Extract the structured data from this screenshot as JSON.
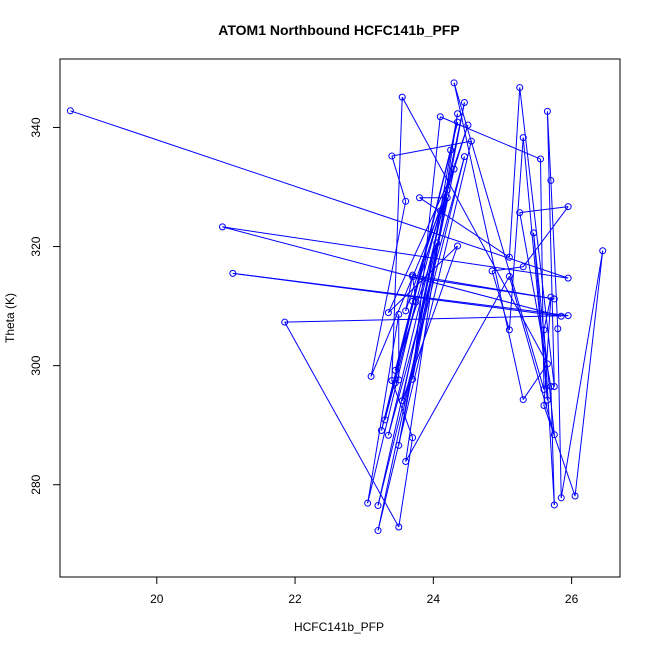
{
  "chart_data": {
    "type": "line",
    "title": "ATOM1 Northbound HCFC141b_PFP",
    "xlabel": "HCFC141b_PFP",
    "ylabel": "Theta (K)",
    "xlim": [
      18.6,
      26.7
    ],
    "ylim": [
      264.5,
      351.5
    ],
    "xticks": [
      20,
      22,
      24,
      26
    ],
    "yticks": [
      280,
      300,
      320,
      340
    ],
    "xtick_labels": [
      "20",
      "22",
      "24",
      "26"
    ],
    "ytick_labels": [
      "280",
      "300",
      "320",
      "340"
    ],
    "series_color": "#0000ff",
    "marker": "open-circle",
    "points": [
      [
        18.75,
        342.8
      ],
      [
        25.95,
        314.7
      ],
      [
        20.95,
        323.3
      ],
      [
        25.85,
        308.3
      ],
      [
        21.1,
        315.5
      ],
      [
        25.95,
        308.4
      ],
      [
        21.85,
        307.3
      ],
      [
        23.5,
        272.9
      ],
      [
        23.7,
        287.9
      ],
      [
        23.4,
        297.5
      ],
      [
        23.55,
        345.1
      ],
      [
        25.65,
        300.3
      ],
      [
        25.3,
        294.3
      ],
      [
        24.3,
        347.5
      ],
      [
        25.6,
        296.0
      ],
      [
        25.55,
        334.7
      ],
      [
        24.1,
        341.8
      ],
      [
        23.7,
        297.7
      ],
      [
        24.2,
        328.2
      ],
      [
        23.8,
        328.2
      ],
      [
        25.1,
        318.2
      ],
      [
        25.25,
        346.7
      ],
      [
        25.75,
        296.5
      ],
      [
        25.65,
        342.7
      ],
      [
        25.7,
        331.1
      ],
      [
        25.8,
        306.2
      ],
      [
        25.85,
        277.8
      ],
      [
        26.45,
        319.3
      ],
      [
        26.05,
        278.1
      ],
      [
        25.6,
        293.3
      ],
      [
        25.7,
        311.5
      ],
      [
        25.6,
        306.0
      ],
      [
        25.75,
        276.6
      ],
      [
        25.7,
        296.5
      ],
      [
        25.25,
        325.7
      ],
      [
        25.95,
        326.7
      ],
      [
        25.3,
        316.6
      ],
      [
        24.85,
        315.9
      ],
      [
        25.1,
        306.0
      ],
      [
        25.3,
        338.3
      ],
      [
        25.65,
        294.2
      ],
      [
        25.45,
        322.3
      ],
      [
        25.75,
        288.4
      ],
      [
        25.1,
        315.0
      ],
      [
        23.6,
        283.9
      ],
      [
        24.35,
        342.3
      ],
      [
        23.5,
        286.6
      ],
      [
        24.45,
        344.2
      ],
      [
        23.55,
        294.1
      ],
      [
        24.35,
        320.1
      ],
      [
        23.35,
        308.9
      ],
      [
        24.3,
        333.0
      ],
      [
        23.2,
        272.3
      ],
      [
        24.55,
        337.7
      ],
      [
        23.4,
        335.2
      ],
      [
        23.6,
        327.6
      ],
      [
        23.1,
        298.2
      ],
      [
        24.1,
        326.0
      ],
      [
        23.3,
        290.9
      ],
      [
        24.25,
        336.2
      ],
      [
        23.25,
        289.1
      ],
      [
        24.35,
        340.9
      ],
      [
        23.45,
        299.2
      ],
      [
        24.05,
        320.6
      ],
      [
        23.2,
        276.5
      ],
      [
        24.45,
        335.1
      ],
      [
        23.35,
        288.3
      ],
      [
        24.2,
        329.5
      ],
      [
        23.7,
        310.8
      ],
      [
        24.5,
        340.4
      ],
      [
        23.6,
        309.2
      ],
      [
        23.7,
        315.2
      ],
      [
        25.75,
        311.2
      ],
      [
        23.7,
        314.9
      ],
      [
        23.75,
        310.7
      ],
      [
        23.05,
        276.9
      ],
      [
        23.5,
        308.6
      ],
      [
        23.5,
        297.6
      ],
      [
        23.45,
        297.1
      ]
    ]
  }
}
